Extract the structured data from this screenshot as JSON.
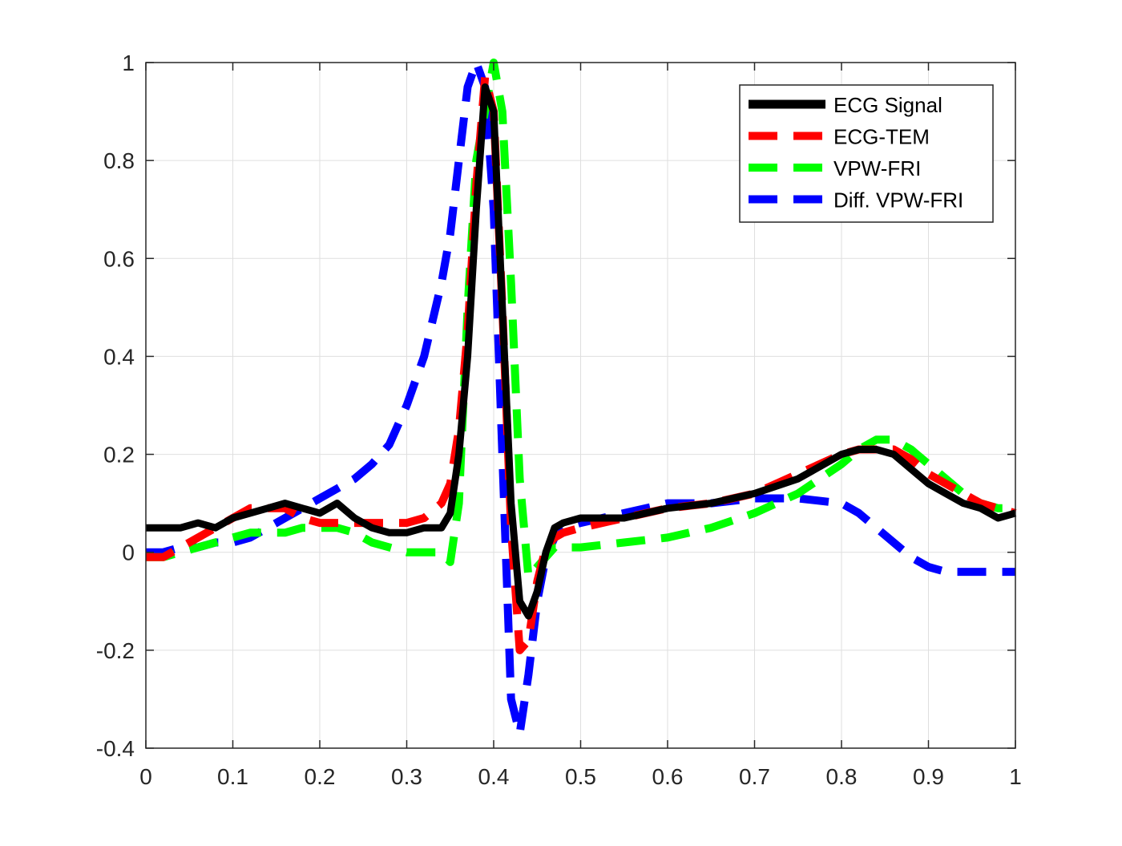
{
  "chart_data": {
    "type": "line",
    "title": "",
    "xlabel": "",
    "ylabel": "",
    "xlim": [
      0,
      1
    ],
    "ylim": [
      -0.4,
      1
    ],
    "xticks": [
      0,
      0.1,
      0.2,
      0.3,
      0.4,
      0.5,
      0.6,
      0.7,
      0.8,
      0.9,
      1
    ],
    "yticks": [
      -0.4,
      -0.2,
      0,
      0.2,
      0.4,
      0.6,
      0.8,
      1
    ],
    "xtick_labels": [
      "0",
      "0.1",
      "0.2",
      "0.3",
      "0.4",
      "0.5",
      "0.6",
      "0.7",
      "0.8",
      "0.9",
      "1"
    ],
    "ytick_labels": [
      "-0.4",
      "-0.2",
      "0",
      "0.2",
      "0.4",
      "0.6",
      "0.8",
      "1"
    ],
    "grid": true,
    "legend_position": "top-right",
    "series": [
      {
        "name": "ECG Signal",
        "color": "#000000",
        "style": "solid",
        "x": [
          0,
          0.02,
          0.04,
          0.06,
          0.08,
          0.1,
          0.12,
          0.14,
          0.16,
          0.18,
          0.2,
          0.22,
          0.24,
          0.26,
          0.28,
          0.3,
          0.32,
          0.34,
          0.35,
          0.36,
          0.37,
          0.38,
          0.39,
          0.4,
          0.41,
          0.42,
          0.43,
          0.44,
          0.45,
          0.46,
          0.47,
          0.48,
          0.5,
          0.55,
          0.6,
          0.65,
          0.7,
          0.75,
          0.8,
          0.82,
          0.84,
          0.86,
          0.88,
          0.9,
          0.92,
          0.94,
          0.96,
          0.98,
          1.0
        ],
        "y": [
          0.05,
          0.05,
          0.05,
          0.06,
          0.05,
          0.07,
          0.08,
          0.09,
          0.1,
          0.09,
          0.08,
          0.1,
          0.07,
          0.05,
          0.04,
          0.04,
          0.05,
          0.05,
          0.08,
          0.2,
          0.4,
          0.7,
          0.95,
          0.9,
          0.5,
          0.1,
          -0.1,
          -0.13,
          -0.08,
          0.0,
          0.05,
          0.06,
          0.07,
          0.07,
          0.09,
          0.1,
          0.12,
          0.15,
          0.2,
          0.21,
          0.21,
          0.2,
          0.17,
          0.14,
          0.12,
          0.1,
          0.09,
          0.07,
          0.08
        ]
      },
      {
        "name": "ECG-TEM",
        "color": "#ff0000",
        "style": "dashed",
        "x": [
          0,
          0.02,
          0.04,
          0.06,
          0.08,
          0.1,
          0.12,
          0.14,
          0.16,
          0.18,
          0.2,
          0.22,
          0.24,
          0.26,
          0.28,
          0.3,
          0.32,
          0.34,
          0.35,
          0.36,
          0.37,
          0.38,
          0.39,
          0.4,
          0.41,
          0.42,
          0.43,
          0.44,
          0.45,
          0.46,
          0.47,
          0.48,
          0.5,
          0.55,
          0.6,
          0.65,
          0.7,
          0.75,
          0.8,
          0.82,
          0.84,
          0.86,
          0.88,
          0.9,
          0.92,
          0.94,
          0.96,
          0.98,
          1.0
        ],
        "y": [
          -0.01,
          -0.01,
          0.01,
          0.03,
          0.05,
          0.07,
          0.09,
          0.09,
          0.09,
          0.07,
          0.06,
          0.06,
          0.06,
          0.06,
          0.06,
          0.06,
          0.07,
          0.1,
          0.14,
          0.25,
          0.45,
          0.75,
          0.97,
          0.9,
          0.5,
          0.05,
          -0.2,
          -0.18,
          -0.06,
          0.01,
          0.03,
          0.04,
          0.05,
          0.07,
          0.09,
          0.1,
          0.12,
          0.16,
          0.2,
          0.21,
          0.21,
          0.21,
          0.19,
          0.16,
          0.14,
          0.12,
          0.1,
          0.09,
          0.08
        ]
      },
      {
        "name": "VPW-FRI",
        "color": "#00ff00",
        "style": "dashed",
        "x": [
          0,
          0.02,
          0.04,
          0.06,
          0.08,
          0.1,
          0.12,
          0.14,
          0.16,
          0.18,
          0.2,
          0.22,
          0.24,
          0.26,
          0.28,
          0.3,
          0.32,
          0.34,
          0.35,
          0.36,
          0.37,
          0.38,
          0.39,
          0.4,
          0.41,
          0.42,
          0.43,
          0.44,
          0.45,
          0.46,
          0.47,
          0.48,
          0.5,
          0.55,
          0.6,
          0.65,
          0.7,
          0.75,
          0.8,
          0.82,
          0.84,
          0.86,
          0.88,
          0.9,
          0.92,
          0.94,
          0.96,
          0.98,
          1.0
        ],
        "y": [
          -0.01,
          -0.01,
          0.0,
          0.01,
          0.02,
          0.03,
          0.04,
          0.04,
          0.04,
          0.05,
          0.05,
          0.05,
          0.04,
          0.02,
          0.01,
          0.0,
          0.0,
          0.0,
          -0.02,
          0.1,
          0.5,
          0.8,
          0.9,
          1.0,
          0.9,
          0.55,
          0.15,
          -0.05,
          -0.03,
          -0.01,
          0.01,
          0.01,
          0.01,
          0.02,
          0.03,
          0.05,
          0.08,
          0.12,
          0.18,
          0.21,
          0.23,
          0.23,
          0.21,
          0.18,
          0.15,
          0.12,
          0.1,
          0.09,
          0.09
        ]
      },
      {
        "name": "Diff. VPW-FRI",
        "color": "#0000ff",
        "style": "dashed",
        "x": [
          0,
          0.02,
          0.04,
          0.06,
          0.08,
          0.1,
          0.12,
          0.14,
          0.16,
          0.18,
          0.2,
          0.22,
          0.24,
          0.26,
          0.28,
          0.3,
          0.32,
          0.34,
          0.35,
          0.36,
          0.37,
          0.38,
          0.39,
          0.4,
          0.41,
          0.42,
          0.43,
          0.44,
          0.45,
          0.46,
          0.47,
          0.48,
          0.5,
          0.55,
          0.6,
          0.65,
          0.7,
          0.75,
          0.8,
          0.82,
          0.84,
          0.86,
          0.88,
          0.9,
          0.92,
          0.94,
          0.96,
          0.98,
          1.0
        ],
        "y": [
          0.0,
          0.0,
          0.01,
          0.01,
          0.02,
          0.02,
          0.03,
          0.05,
          0.07,
          0.09,
          0.11,
          0.13,
          0.15,
          0.18,
          0.22,
          0.3,
          0.4,
          0.55,
          0.65,
          0.8,
          0.95,
          1.0,
          0.95,
          0.7,
          0.2,
          -0.3,
          -0.37,
          -0.25,
          -0.1,
          -0.01,
          0.03,
          0.05,
          0.06,
          0.08,
          0.1,
          0.1,
          0.11,
          0.11,
          0.1,
          0.08,
          0.05,
          0.02,
          -0.01,
          -0.03,
          -0.04,
          -0.04,
          -0.04,
          -0.04,
          -0.04
        ]
      }
    ]
  }
}
